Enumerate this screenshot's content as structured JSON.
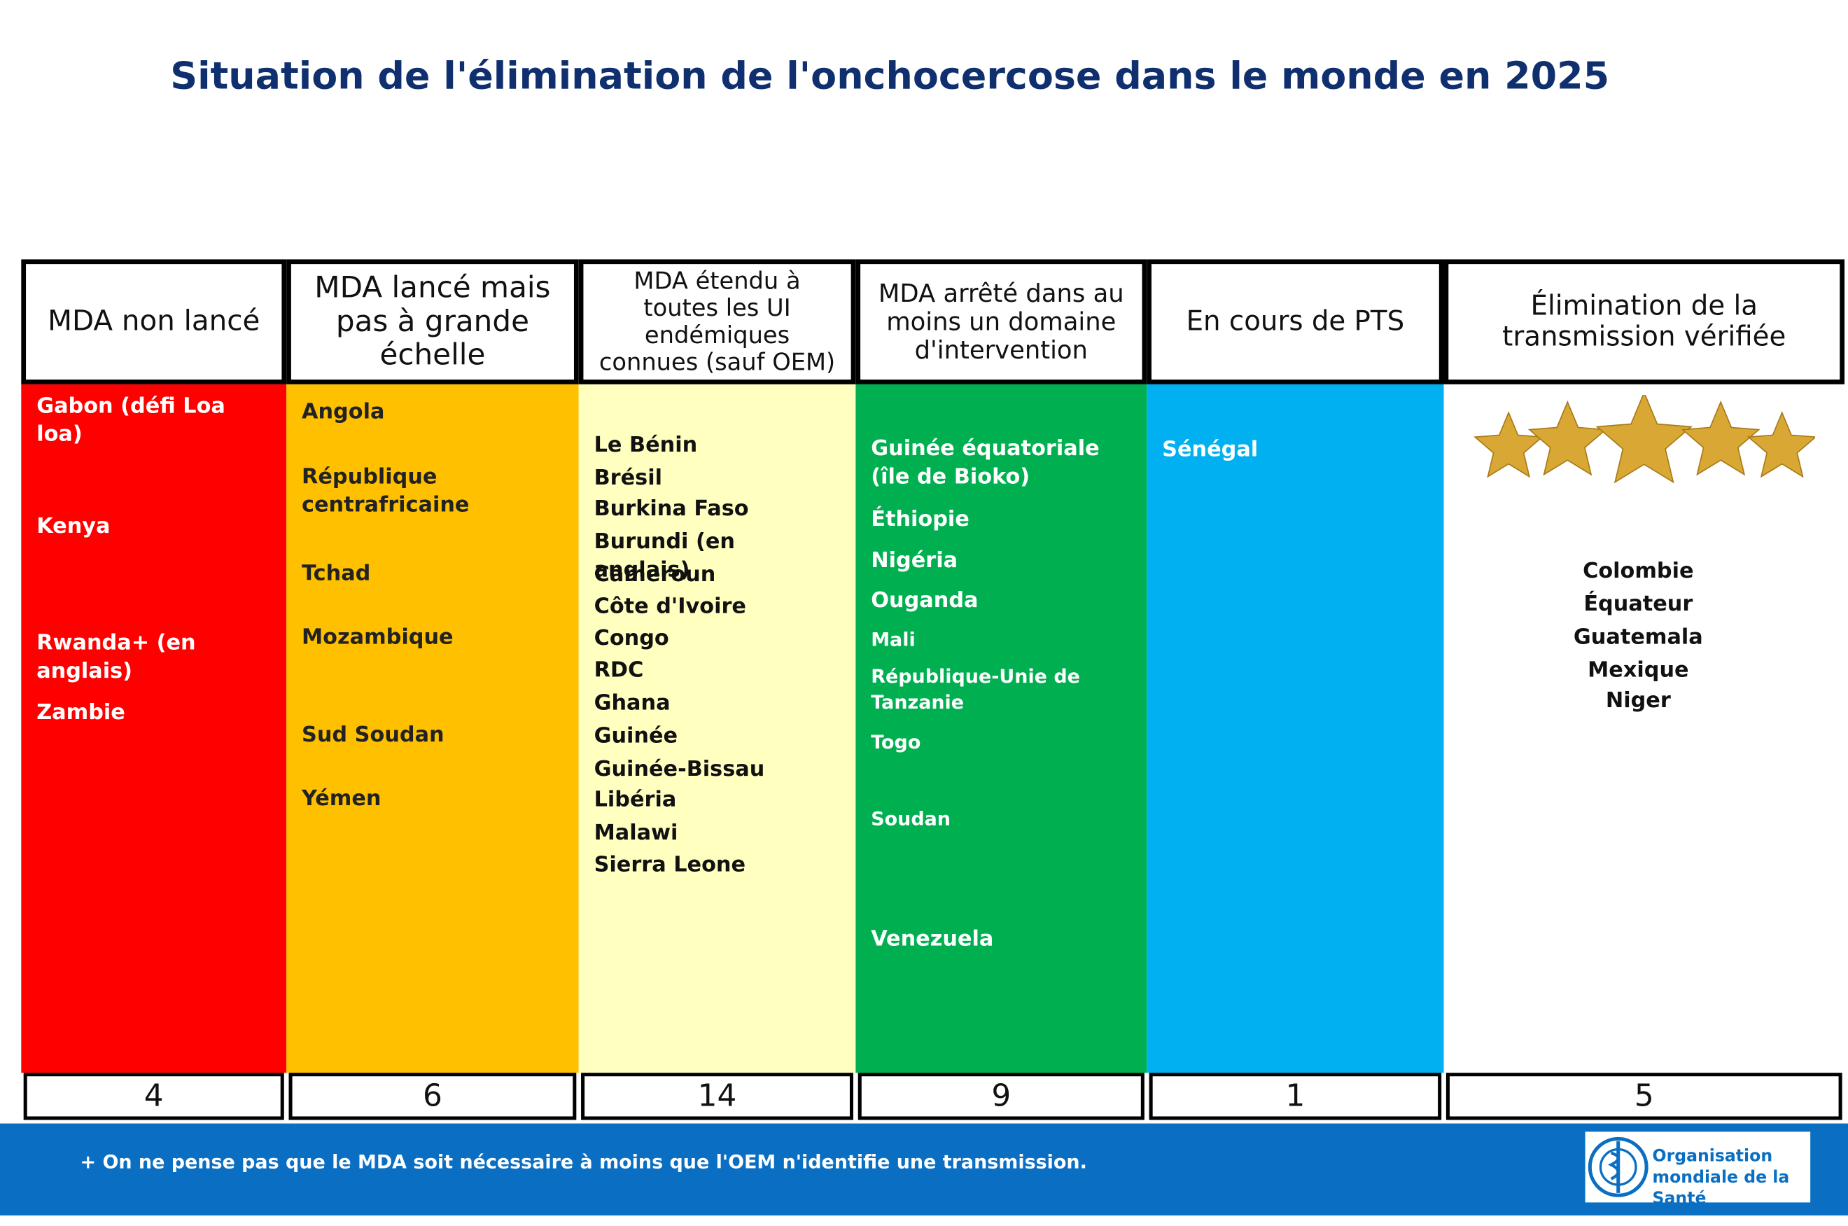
{
  "title": "Situation de l'élimination de l'onchocercose dans le monde en 2025",
  "columns": [
    {
      "header": [
        "MDA non lancé"
      ],
      "countries": [
        "Gabon (défi Loa loa)",
        "Kenya",
        "Rwanda+ (en anglais)",
        "Zambie"
      ],
      "count": 4
    },
    {
      "header": [
        "MDA lancé mais",
        "pas à grande",
        "échelle"
      ],
      "countries": [
        "Angola",
        "République centrafricaine",
        "Tchad",
        "Mozambique",
        "Sud Soudan",
        "Yémen"
      ],
      "count": 6
    },
    {
      "header": [
        "MDA étendu à",
        "toutes les UI",
        "endémiques",
        "connues (sauf OEM)"
      ],
      "countries": [
        "Le Bénin",
        "Brésil",
        "Burkina Faso",
        "Burundi (en anglais)",
        "Cameroun",
        "Côte d'Ivoire",
        "Congo",
        "RDC",
        "Ghana",
        "Guinée",
        "Guinée-Bissau",
        "Libéria",
        "Malawi",
        "Sierra Leone"
      ],
      "count": 14
    },
    {
      "header": [
        "MDA arrêté dans au",
        "moins un domaine",
        "d'intervention"
      ],
      "countries": [
        "Guinée équatoriale (île de Bioko)",
        "Éthiopie",
        "Nigéria",
        "Ouganda",
        "Mali",
        "République-Unie de Tanzanie",
        "Togo",
        "Soudan",
        "Venezuela"
      ],
      "count": 9
    },
    {
      "header": [
        "En cours de PTS"
      ],
      "countries": [
        "Sénégal"
      ],
      "count": 1
    },
    {
      "header": [
        "Élimination de la",
        "transmission vérifiée"
      ],
      "countries": [
        "Colombie",
        "Équateur",
        "Guatemala",
        "Mexique",
        "Niger"
      ],
      "count": 5
    }
  ],
  "footnote": "+ On ne pense pas que le MDA soit nécessaire à moins que l'OEM n'identifie une transmission.",
  "logo": [
    "Organisation",
    "mondiale de la Santé"
  ]
}
